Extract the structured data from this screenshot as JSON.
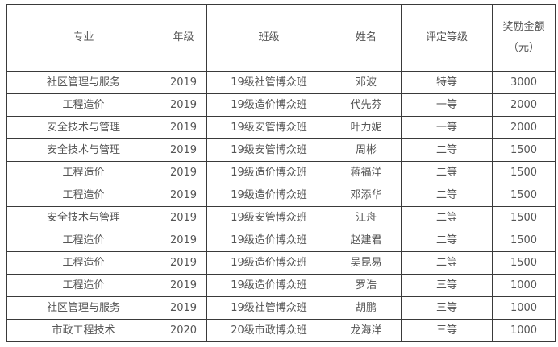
{
  "table": {
    "headers": [
      "专业",
      "年级",
      "班级",
      "姓名",
      "评定等级",
      "奖励金额（元）"
    ],
    "header_amount_line1": "奖励金额",
    "header_amount_line2": "（元）",
    "rows": [
      [
        "社区管理与服务",
        "2019",
        "19级社管博众班",
        "邓波",
        "特等",
        "3000"
      ],
      [
        "工程造价",
        "2019",
        "19级造价博众班",
        "代先芬",
        "一等",
        "2000"
      ],
      [
        "安全技术与管理",
        "2019",
        "19级安管博众班",
        "叶力妮",
        "一等",
        "2000"
      ],
      [
        "安全技术与管理",
        "2019",
        "19级安管博众班",
        "周彬",
        "二等",
        "1500"
      ],
      [
        "工程造价",
        "2019",
        "19级造价博众班",
        "蒋福洋",
        "二等",
        "1500"
      ],
      [
        "工程造价",
        "2019",
        "19级造价博众班",
        "邓添华",
        "二等",
        "1500"
      ],
      [
        "安全技术与管理",
        "2019",
        "19级安管博众班",
        "江舟",
        "二等",
        "1500"
      ],
      [
        "工程造价",
        "2019",
        "19级造价博众班",
        "赵建君",
        "二等",
        "1500"
      ],
      [
        "工程造价",
        "2019",
        "19级造价博众班",
        "吴昆易",
        "二等",
        "1500"
      ],
      [
        "工程造价",
        "2019",
        "19级造价博众班",
        "罗浩",
        "三等",
        "1000"
      ],
      [
        "社区管理与服务",
        "2019",
        "19级社管博众班",
        "胡鹏",
        "三等",
        "1000"
      ],
      [
        "市政工程技术",
        "2020",
        "20级市政博众班",
        "龙海洋",
        "三等",
        "1000"
      ]
    ]
  }
}
